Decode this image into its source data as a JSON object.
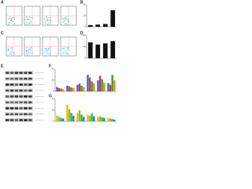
{
  "panels": [
    "A",
    "B",
    "C",
    "D",
    "E",
    "F",
    "G"
  ],
  "chart_data": [
    {
      "type": "bar",
      "categories": [
        null,
        null,
        null,
        null
      ],
      "values": [
        3,
        4,
        5,
        30
      ],
      "color": "#111111",
      "ylim": [
        0,
        40
      ],
      "yticks": [
        0,
        20,
        40
      ]
    },
    {
      "type": "bar",
      "categories": [
        null,
        null,
        null,
        null
      ],
      "values": [
        70,
        60,
        65,
        75
      ],
      "color": "#111111",
      "ylim": [
        0,
        100
      ],
      "yticks": [
        0,
        50,
        100
      ]
    },
    {
      "type": "bar",
      "categories": [
        null,
        null,
        null,
        null,
        null,
        null
      ],
      "series": [
        {
          "name": null,
          "color": "#3b5bdb",
          "values": [
            8,
            10,
            12,
            30,
            20,
            15
          ]
        },
        {
          "name": null,
          "color": "#e03131",
          "values": [
            6,
            9,
            14,
            25,
            28,
            12
          ]
        },
        {
          "name": null,
          "color": "#2f9e44",
          "values": [
            5,
            7,
            10,
            18,
            22,
            30
          ]
        },
        {
          "name": null,
          "color": "#f08c00",
          "values": [
            4,
            6,
            8,
            15,
            16,
            20
          ]
        }
      ],
      "ylim": [
        0,
        40
      ],
      "yticks": [
        0,
        20,
        40
      ]
    },
    {
      "type": "bar",
      "categories": [
        null,
        null,
        null,
        null,
        null,
        null
      ],
      "series": [
        {
          "name": null,
          "color": "#fab005",
          "values": [
            10,
            30,
            15,
            12,
            8,
            6
          ]
        },
        {
          "name": null,
          "color": "#82c91e",
          "values": [
            8,
            22,
            20,
            10,
            9,
            5
          ]
        },
        {
          "name": null,
          "color": "#37b24d",
          "values": [
            6,
            15,
            12,
            14,
            7,
            4
          ]
        },
        {
          "name": null,
          "color": "#1c7ed6",
          "values": [
            5,
            10,
            8,
            9,
            6,
            3
          ]
        }
      ],
      "ylim": [
        0,
        40
      ],
      "yticks": [
        0,
        20,
        40
      ]
    }
  ]
}
